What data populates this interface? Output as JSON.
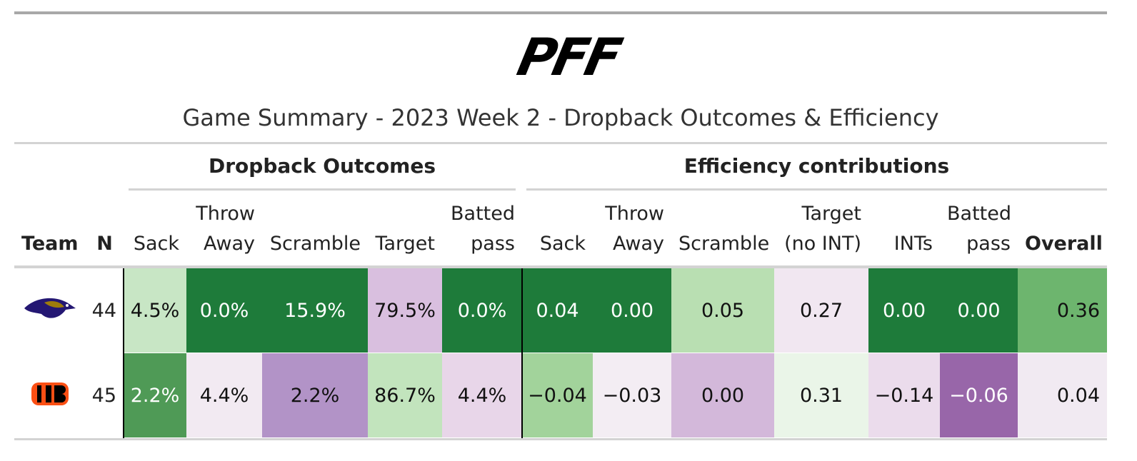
{
  "logo": "PFF",
  "title": "Game Summary - 2023 Week 2 - Dropback Outcomes & Efficiency",
  "groups": [
    "Dropback Outcomes",
    "Efficiency contributions"
  ],
  "columns": [
    [
      "Team"
    ],
    [
      "N"
    ],
    [
      "Sack"
    ],
    [
      "Throw",
      "Away"
    ],
    [
      "Scramble"
    ],
    [
      "Target"
    ],
    [
      "Batted",
      "pass"
    ],
    [
      "Sack"
    ],
    [
      "Throw",
      "Away"
    ],
    [
      "Scramble"
    ],
    [
      "Target",
      "(no INT)"
    ],
    [
      "INTs"
    ],
    [
      "Batted",
      "pass"
    ],
    [
      "Overall"
    ]
  ],
  "rows": [
    {
      "n": 44,
      "cells": [
        "4.5%",
        "0.0%",
        "15.9%",
        "79.5%",
        "0.0%",
        "0.04",
        "0.00",
        "0.05",
        "0.27",
        "0.00",
        "0.00",
        "0.36"
      ],
      "colors": [
        "#c8e6c5",
        "#1e7b3a",
        "#1e7b3a",
        "#d9bfdf",
        "#1e7b3a",
        "#1e7b3a",
        "#1e7b3a",
        "#b9dfb2",
        "#f1e7f1",
        "#1e7b3a",
        "#1e7b3a",
        "#6db56e"
      ]
    },
    {
      "n": 45,
      "cells": [
        "2.2%",
        "4.4%",
        "2.2%",
        "86.7%",
        "4.4%",
        "−0.04",
        "−0.03",
        "0.00",
        "0.31",
        "−0.14",
        "−0.06",
        "0.04"
      ],
      "colors": [
        "#4f9a56",
        "#f2eaf2",
        "#b293c7",
        "#c2e4bd",
        "#e8d6e9",
        "#a2d39b",
        "#f3edf3",
        "#d3b8da",
        "#eaf5e8",
        "#ebdcec",
        "#9866a9",
        "#f1eaf2"
      ]
    }
  ]
}
